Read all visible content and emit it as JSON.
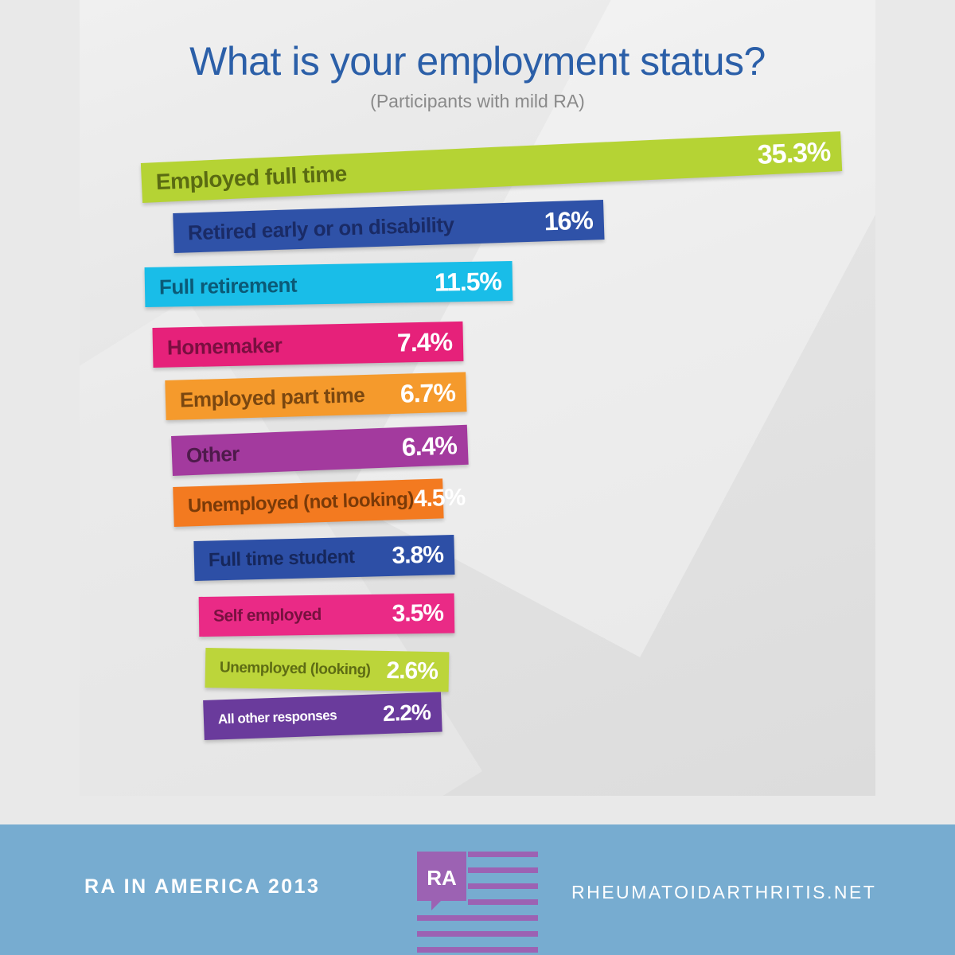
{
  "header": {
    "title": "What is your employment status?",
    "subtitle": "(Participants with mild RA)"
  },
  "chart_data": {
    "type": "bar",
    "orientation": "horizontal",
    "title": "What is your employment status?",
    "subtitle": "(Participants with mild RA)",
    "xlabel": "",
    "ylabel": "",
    "grid": false,
    "categories": [
      "Employed full time",
      "Retired early or on disability",
      "Full retirement",
      "Homemaker",
      "Employed part time",
      "Other",
      "Unemployed (not looking)",
      "Full time student",
      "Self employed",
      "Unemployed (looking)",
      "All other responses"
    ],
    "values": [
      35.3,
      16,
      11.5,
      7.4,
      6.7,
      6.4,
      4.5,
      3.8,
      3.5,
      2.6,
      2.2
    ],
    "value_labels": [
      "35.3%",
      "16%",
      "11.5%",
      "7.4%",
      "6.7%",
      "6.4%",
      "4.5%",
      "3.8%",
      "3.5%",
      "2.6%",
      "2.2%"
    ],
    "colors": [
      "#b5d334",
      "#2f52a8",
      "#19bde8",
      "#e6217a",
      "#f59a2c",
      "#a33a9e",
      "#f37a20",
      "#2d4fa6",
      "#ea2a86",
      "#bcd53a",
      "#6a3b9c"
    ],
    "label_colors": [
      "#5a6b12",
      "#1a2b66",
      "#0b5a77",
      "#7a0f40",
      "#7a4710",
      "#4e1a4b",
      "#7a3a08",
      "#16275c",
      "#77113f",
      "#5e6c14",
      "#ffffff"
    ]
  },
  "footer": {
    "left_text": "RA IN AMERICA 2013",
    "right_text": "RHEUMATOIDARTHRITIS.NET",
    "logo_icon": "ra-speech-bubble-flag-icon",
    "logo_text": "RA",
    "logo_color": "#9c62b3",
    "background": "#77acd0"
  }
}
